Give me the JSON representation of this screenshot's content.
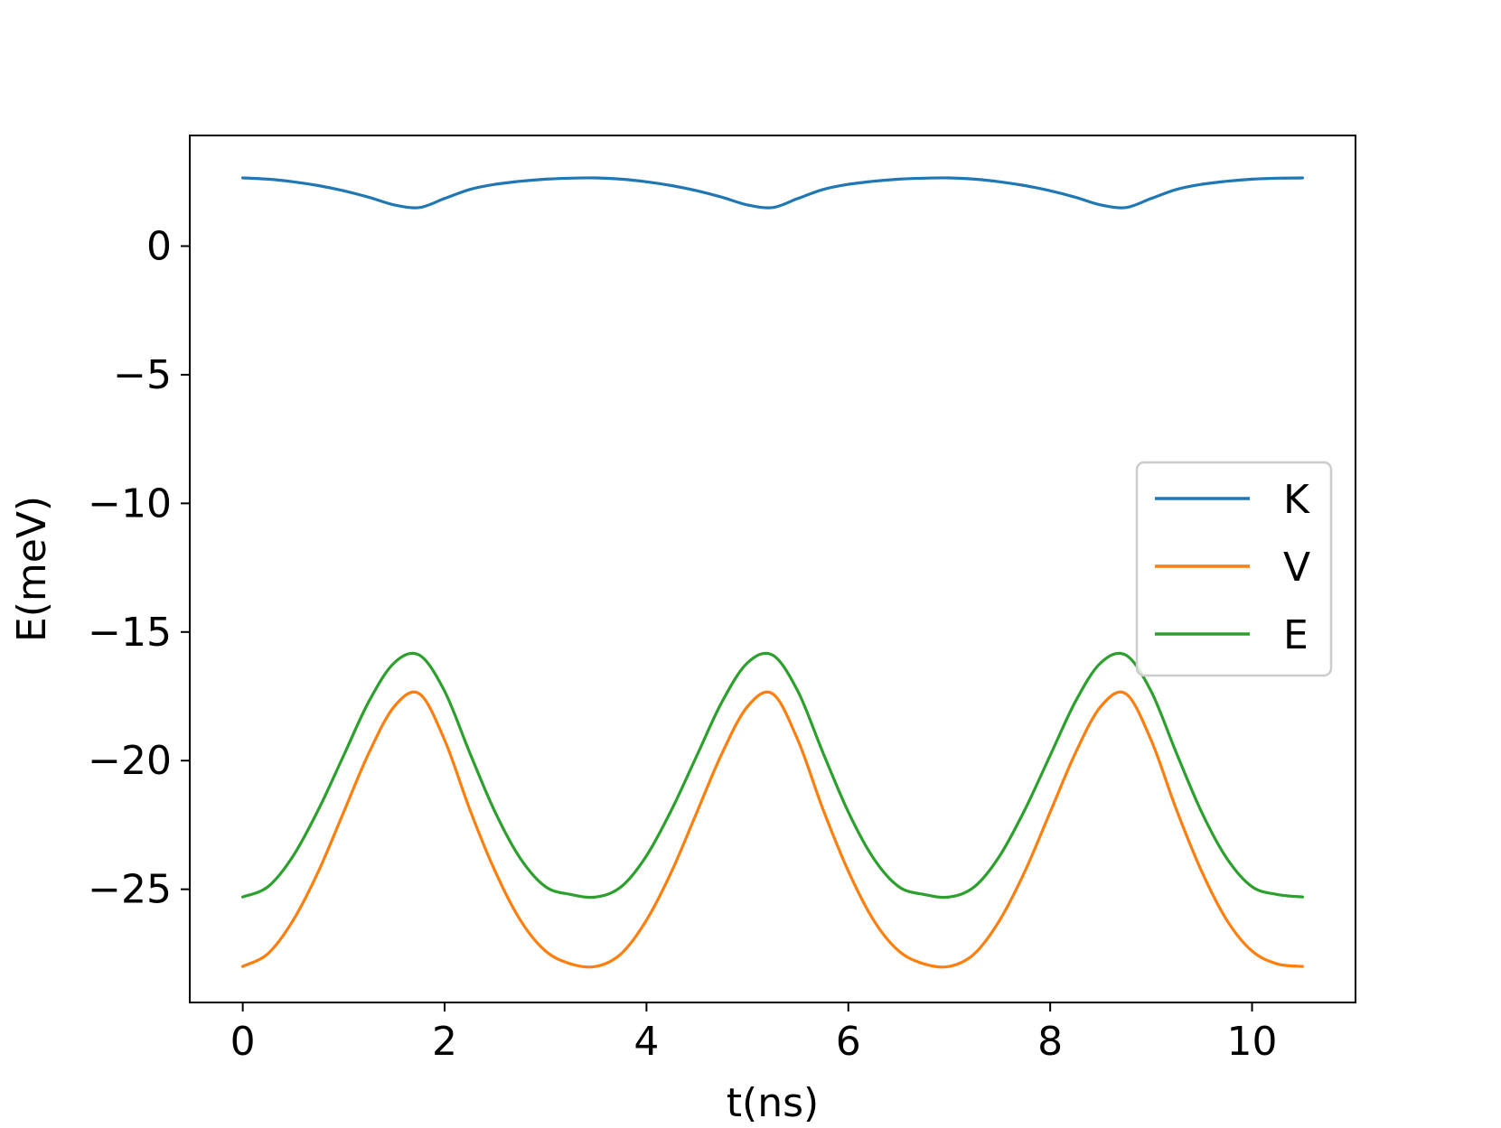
{
  "chart_data": {
    "type": "line",
    "title": "",
    "xlabel": "t(ns)",
    "ylabel": "E(meV)",
    "xlim": [
      -0.525,
      11.025
    ],
    "ylim": [
      -29.4,
      4.3
    ],
    "xticks": [
      0,
      2,
      4,
      6,
      8,
      10
    ],
    "yticks": [
      0,
      -5,
      -10,
      -15,
      -20,
      -25
    ],
    "xtick_labels": [
      "0",
      "2",
      "4",
      "6",
      "8",
      "10"
    ],
    "ytick_labels": [
      "0",
      "−5",
      "−10",
      "−15",
      "−20",
      "−25"
    ],
    "grid": false,
    "legend_position": "center-right",
    "period_ns": 3.5,
    "x": [
      0,
      0.25,
      0.5,
      0.75,
      1.0,
      1.25,
      1.5,
      1.75,
      2.0,
      2.25,
      2.5,
      2.75,
      3.0,
      3.25,
      3.5,
      3.75,
      4.0,
      4.25,
      4.5,
      4.75,
      5.0,
      5.25,
      5.5,
      5.75,
      6.0,
      6.25,
      6.5,
      6.75,
      7.0,
      7.25,
      7.5,
      7.75,
      8.0,
      8.25,
      8.5,
      8.75,
      9.0,
      9.25,
      9.5,
      9.75,
      10.0,
      10.25,
      10.5
    ],
    "series": [
      {
        "name": "K",
        "color": "#1f77b4",
        "values": [
          2.65,
          2.6,
          2.5,
          2.35,
          2.15,
          1.9,
          1.6,
          1.5,
          1.85,
          2.2,
          2.4,
          2.52,
          2.6,
          2.64,
          2.65,
          2.6,
          2.5,
          2.35,
          2.15,
          1.9,
          1.6,
          1.5,
          1.85,
          2.2,
          2.4,
          2.52,
          2.6,
          2.64,
          2.65,
          2.6,
          2.5,
          2.35,
          2.15,
          1.9,
          1.6,
          1.5,
          1.85,
          2.2,
          2.4,
          2.52,
          2.6,
          2.64,
          2.65
        ]
      },
      {
        "name": "V",
        "color": "#ff7f0e",
        "values": [
          -28.0,
          -27.5,
          -26.2,
          -24.3,
          -22.0,
          -19.7,
          -17.9,
          -17.4,
          -19.2,
          -21.9,
          -24.3,
          -26.2,
          -27.4,
          -27.9,
          -28.0,
          -27.5,
          -26.2,
          -24.3,
          -22.0,
          -19.7,
          -17.9,
          -17.4,
          -19.2,
          -21.9,
          -24.3,
          -26.2,
          -27.4,
          -27.9,
          -28.0,
          -27.5,
          -26.2,
          -24.3,
          -22.0,
          -19.7,
          -17.9,
          -17.4,
          -19.2,
          -21.9,
          -24.3,
          -26.2,
          -27.4,
          -27.9,
          -28.0
        ]
      },
      {
        "name": "E",
        "color": "#2ca02c",
        "values": [
          -25.3,
          -24.9,
          -23.7,
          -21.9,
          -19.8,
          -17.7,
          -16.2,
          -15.9,
          -17.3,
          -19.7,
          -22.0,
          -23.8,
          -24.9,
          -25.2,
          -25.3,
          -24.9,
          -23.7,
          -21.9,
          -19.8,
          -17.7,
          -16.2,
          -15.9,
          -17.3,
          -19.7,
          -22.0,
          -23.8,
          -24.9,
          -25.2,
          -25.3,
          -24.9,
          -23.7,
          -21.9,
          -19.8,
          -17.7,
          -16.2,
          -15.9,
          -17.3,
          -19.7,
          -22.0,
          -23.8,
          -24.9,
          -25.2,
          -25.3
        ]
      }
    ]
  }
}
